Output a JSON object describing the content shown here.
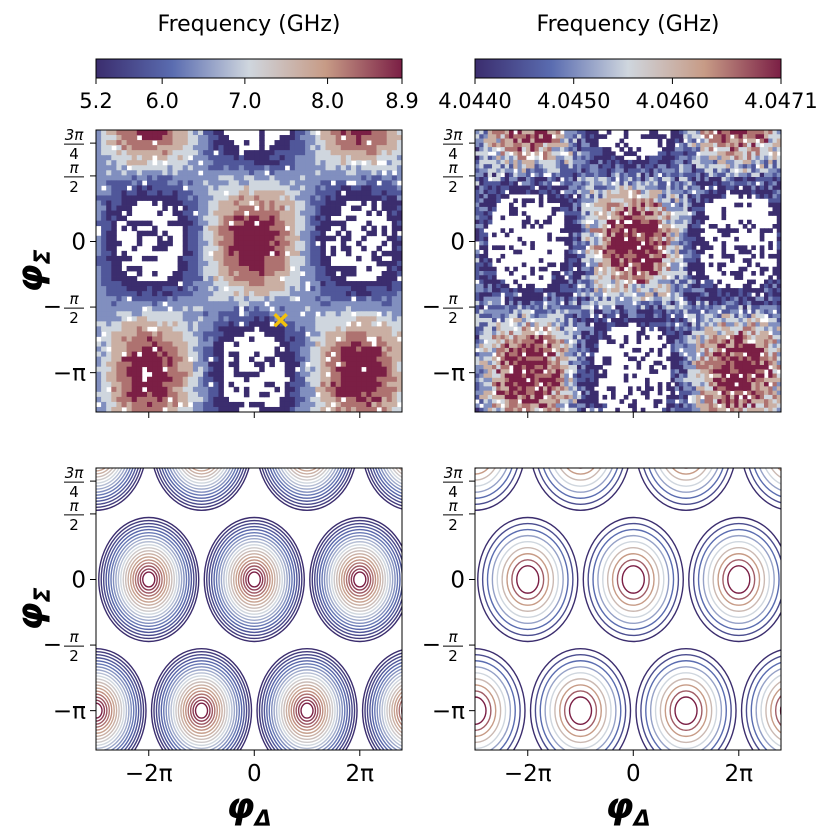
{
  "colorbars": [
    {
      "label": "Frequency (GHz)",
      "range": [
        5.2,
        8.9
      ],
      "ticks": [
        {
          "value": 5.2,
          "label": "5.2"
        },
        {
          "value": 6.0,
          "label": "6.0"
        },
        {
          "value": 7.0,
          "label": "7.0"
        },
        {
          "value": 8.0,
          "label": "8.0"
        },
        {
          "value": 8.9,
          "label": "8.9"
        }
      ]
    },
    {
      "label": "Frequency (GHz)",
      "range": [
        4.044,
        4.0471
      ],
      "ticks": [
        {
          "value": 4.044,
          "label": "4.0440"
        },
        {
          "value": 4.045,
          "label": "4.0450"
        },
        {
          "value": 4.046,
          "label": "4.0460"
        },
        {
          "value": 4.0471,
          "label": "4.0471"
        }
      ]
    }
  ],
  "colors": {
    "colormap": [
      "#3b2d6e",
      "#5a6cb0",
      "#cfd6de",
      "#c79b86",
      "#7b1f45"
    ],
    "marker": "#f2c10d"
  },
  "axes": {
    "xlabel_main": "φ",
    "xlabel_sub": "Δ",
    "ylabel_main": "φ",
    "ylabel_sub": "Σ",
    "xticks": [
      {
        "value": "-2π",
        "label": "−2π"
      },
      {
        "value": "0",
        "label": "0"
      },
      {
        "value": "2π",
        "label": "2π"
      }
    ],
    "yticks": [
      {
        "value": "3π/4",
        "num": "3π",
        "den": "4"
      },
      {
        "value": "π/2",
        "num": "π",
        "den": "2"
      },
      {
        "value": "0",
        "label": "0"
      },
      {
        "value": "-π/2",
        "sign": "−",
        "num": "π",
        "den": "2"
      },
      {
        "value": "-π",
        "label": "−π"
      }
    ]
  },
  "chart_data": [
    {
      "type": "heatmap",
      "panel": "top-left",
      "description_source": "measured, pixelated",
      "x_range": [
        "-3π",
        "2.8π"
      ],
      "y_range": [
        "-1.3π",
        "0.85π"
      ],
      "colorbar": 0,
      "maxima_x": [
        "-2π",
        "0",
        "2π"
      ],
      "maxima_y": [
        "0"
      ],
      "lower_maxima_x": [
        "-π",
        "π"
      ],
      "lower_maxima_y": [
        "-π"
      ],
      "marker": {
        "x": "0.5π",
        "y": "-0.6π",
        "symbol": "x"
      }
    },
    {
      "type": "heatmap",
      "panel": "top-right",
      "x_range": [
        "-3π",
        "2.8π"
      ],
      "y_range": [
        "-1.3π",
        "0.85π"
      ],
      "colorbar": 1,
      "maxima_x": [
        "-2π",
        "0",
        "2π"
      ],
      "maxima_y": [
        "0"
      ],
      "lower_maxima_x": [
        "-π",
        "π"
      ],
      "lower_maxima_y": [
        "-π"
      ]
    },
    {
      "type": "contour",
      "panel": "bottom-left",
      "x_range": [
        "-3π",
        "2.8π"
      ],
      "y_range": [
        "-1.3π",
        "0.85π"
      ],
      "colorbar": 0,
      "levels": [
        5.2,
        5.4,
        5.6,
        5.8,
        6.0,
        6.2,
        6.4,
        6.6,
        6.8,
        7.0,
        7.2,
        7.4,
        7.6,
        7.8,
        8.0,
        8.2,
        8.4,
        8.6,
        8.8
      ]
    },
    {
      "type": "contour",
      "panel": "bottom-right",
      "x_range": [
        "-3π",
        "2.8π"
      ],
      "y_range": [
        "-1.3π",
        "0.85π"
      ],
      "colorbar": 1,
      "levels": [
        4.044,
        4.0444,
        4.0448,
        4.0452,
        4.0456,
        4.046,
        4.0464,
        4.0468,
        4.0471
      ]
    }
  ]
}
